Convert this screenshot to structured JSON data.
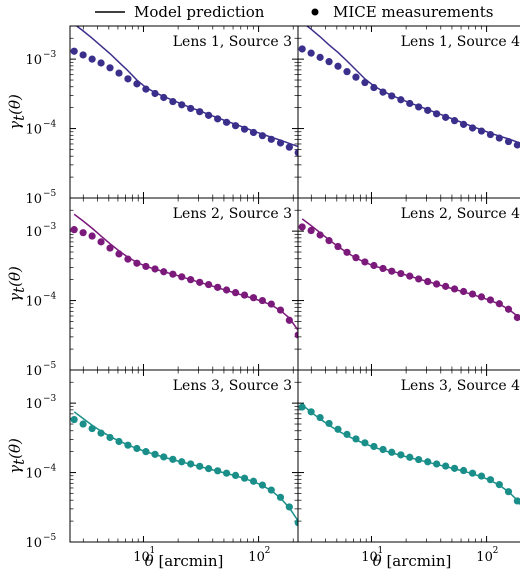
{
  "legend": {
    "model_label": "Model prediction",
    "data_label": "MICE measurements"
  },
  "axes": {
    "xlabel_symbol": "θ",
    "xlabel_unit": " [arcmin]",
    "ylabel_symbol": "γ",
    "ylabel_sub": "t",
    "ylabel_arg": "(θ)",
    "xscale": "log",
    "yscale": "log",
    "xlim": [
      2.3,
      220
    ],
    "ylim": [
      1e-05,
      0.003
    ],
    "x_ticks": [
      {
        "base": "10",
        "exp": "1",
        "value": 10
      },
      {
        "base": "10",
        "exp": "2",
        "value": 100
      }
    ],
    "y_ticks": [
      {
        "base": "10",
        "exp": "−3",
        "value": 0.001
      },
      {
        "base": "10",
        "exp": "−4",
        "value": 0.0001
      },
      {
        "base": "10",
        "exp": "−5",
        "value": 1e-05
      }
    ]
  },
  "colors": {
    "lens1": "#3b2f8c",
    "lens2": "#7b1a7b",
    "lens3": "#1a8f8a"
  },
  "chart_data": {
    "type": "scatter",
    "x": [
      2.5,
      2.99,
      3.58,
      4.28,
      5.12,
      6.13,
      7.33,
      8.77,
      10.5,
      12.6,
      15.0,
      18.0,
      21.5,
      25.7,
      30.8,
      36.8,
      44.1,
      52.7,
      63.1,
      75.5,
      90.3,
      108,
      129,
      155,
      185,
      221
    ],
    "panels": [
      {
        "label": "Lens 1, Source 3",
        "color_key": "lens1",
        "model": [
          0.0032,
          0.00255,
          0.002,
          0.00155,
          0.0012,
          0.0009,
          0.00068,
          0.0005,
          0.00039,
          0.00033,
          0.00029,
          0.000255,
          0.000225,
          0.0002,
          0.00018,
          0.00016,
          0.000143,
          0.000128,
          0.000115,
          0.000103,
          9.2e-05,
          8.3e-05,
          7.5e-05,
          6.8e-05,
          6.1e-05,
          5.5e-05
        ],
        "measured": [
          0.0013,
          0.00115,
          0.001,
          0.00088,
          0.00075,
          0.00063,
          0.00052,
          0.00044,
          0.00037,
          0.00032,
          0.00028,
          0.000245,
          0.00022,
          0.000195,
          0.000175,
          0.000155,
          0.000138,
          0.000123,
          0.00011,
          9.8e-05,
          8.8e-05,
          7.9e-05,
          7e-05,
          6.2e-05,
          5.4e-05,
          4.5e-05
        ]
      },
      {
        "label": "Lens 1, Source 4",
        "color_key": "lens1",
        "model": [
          0.0034,
          0.0027,
          0.0021,
          0.0016,
          0.00125,
          0.00094,
          0.0007,
          0.00052,
          0.00041,
          0.000345,
          0.0003,
          0.000265,
          0.000235,
          0.00021,
          0.000188,
          0.000168,
          0.00015,
          0.000134,
          0.00012,
          0.000107,
          9.6e-05,
          8.6e-05,
          7.8e-05,
          7.1e-05,
          6.4e-05,
          5.8e-05
        ],
        "measured": [
          0.0014,
          0.00122,
          0.00106,
          0.00092,
          0.00079,
          0.00066,
          0.00055,
          0.00046,
          0.00039,
          0.000335,
          0.000295,
          0.00026,
          0.00023,
          0.000205,
          0.000183,
          0.000163,
          0.000145,
          0.00013,
          0.000115,
          0.000102,
          9.2e-05,
          8.2e-05,
          7.3e-05,
          6.5e-05,
          5.8e-05,
          5e-05
        ]
      },
      {
        "label": "Lens 2, Source 3",
        "color_key": "lens2",
        "model": [
          0.00175,
          0.0014,
          0.0011,
          0.00085,
          0.00066,
          0.00052,
          0.00042,
          0.000355,
          0.00031,
          0.000285,
          0.00026,
          0.00024,
          0.00022,
          0.0002,
          0.000183,
          0.000168,
          0.000153,
          0.00014,
          0.000128,
          0.000117,
          0.000107,
          9.7e-05,
          8.6e-05,
          7.2e-05,
          5.6e-05,
          3.7e-05
        ],
        "measured": [
          0.00105,
          0.00095,
          0.00085,
          0.0007,
          0.00057,
          0.00047,
          0.000395,
          0.000345,
          0.00031,
          0.000285,
          0.00026,
          0.00024,
          0.00022,
          0.0002,
          0.000183,
          0.00017,
          0.000155,
          0.000142,
          0.00013,
          0.00012,
          0.00011,
          0.0001,
          8.9e-05,
          7.3e-05,
          5.2e-05,
          3.2e-05
        ]
      },
      {
        "label": "Lens 2, Source 4",
        "color_key": "lens2",
        "model": [
          0.0015,
          0.0012,
          0.00095,
          0.00075,
          0.0006,
          0.00049,
          0.00041,
          0.000355,
          0.000315,
          0.00029,
          0.000265,
          0.000245,
          0.000225,
          0.000205,
          0.000188,
          0.000172,
          0.000158,
          0.000145,
          0.000133,
          0.000122,
          0.000111,
          0.0001,
          8.9e-05,
          7.5e-05,
          6e-05,
          4.3e-05
        ],
        "measured": [
          0.00115,
          0.00102,
          0.00088,
          0.00073,
          0.0006,
          0.000495,
          0.000415,
          0.00036,
          0.00032,
          0.00029,
          0.000265,
          0.000245,
          0.000225,
          0.000205,
          0.000188,
          0.000173,
          0.00016,
          0.000147,
          0.000135,
          0.000124,
          0.000113,
          0.000102,
          9e-05,
          7.5e-05,
          5.7e-05,
          3.9e-05
        ]
      },
      {
        "label": "Lens 3, Source 3",
        "color_key": "lens3",
        "model": [
          0.00075,
          0.0006,
          0.00048,
          0.000395,
          0.00033,
          0.000285,
          0.00025,
          0.000222,
          0.0002,
          0.000182,
          0.000167,
          0.000153,
          0.000142,
          0.000132,
          0.000122,
          0.000113,
          0.000105,
          9.7e-05,
          9e-05,
          8.2e-05,
          7.4e-05,
          6.5e-05,
          5.5e-05,
          4.3e-05,
          3.1e-05,
          2e-05
        ],
        "measured": [
          0.00058,
          0.0005,
          0.00043,
          0.00037,
          0.00032,
          0.00028,
          0.000248,
          0.000222,
          0.0002,
          0.000183,
          0.000168,
          0.000155,
          0.000143,
          0.000133,
          0.000123,
          0.000114,
          0.000106,
          9.8e-05,
          9.1e-05,
          8.3e-05,
          7.5e-05,
          6.6e-05,
          5.6e-05,
          4.4e-05,
          3.2e-05,
          1.9e-05
        ]
      },
      {
        "label": "Lens 3, Source 4",
        "color_key": "lens3",
        "model": [
          0.00095,
          0.00074,
          0.00059,
          0.00048,
          0.0004,
          0.00034,
          0.000295,
          0.00026,
          0.000232,
          0.00021,
          0.000192,
          0.000177,
          0.000164,
          0.000152,
          0.000141,
          0.000131,
          0.000122,
          0.000113,
          0.000105,
          9.6e-05,
          8.7e-05,
          7.7e-05,
          6.6e-05,
          5.3e-05,
          4e-05,
          2.6e-05
        ],
        "measured": [
          0.00088,
          0.00075,
          0.00062,
          0.00051,
          0.00042,
          0.000355,
          0.000305,
          0.000268,
          0.000238,
          0.000215,
          0.000196,
          0.00018,
          0.000166,
          0.000154,
          0.000143,
          0.000133,
          0.000124,
          0.000115,
          0.000107,
          9.8e-05,
          8.9e-05,
          7.9e-05,
          6.7e-05,
          5.3e-05,
          3.9e-05,
          2.5e-05
        ]
      }
    ]
  }
}
